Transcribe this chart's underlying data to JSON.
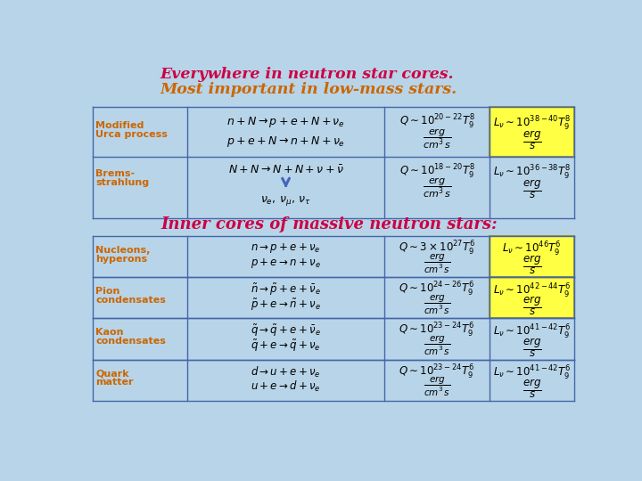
{
  "bg_color": "#b8d4e8",
  "title1": "Everywhere in neutron star cores.",
  "title2": "Most important in low-mass stars.",
  "title1_color": "#cc0044",
  "title2_color": "#cc6600",
  "section2_title": "Inner cores of massive neutron stars:",
  "section2_color": "#cc0044",
  "highlight_color": "#ffff44",
  "highlight_border": "#999933",
  "table_line_color": "#4466aa",
  "label_color": "#cc6600",
  "arrow_color": "#4466bb"
}
